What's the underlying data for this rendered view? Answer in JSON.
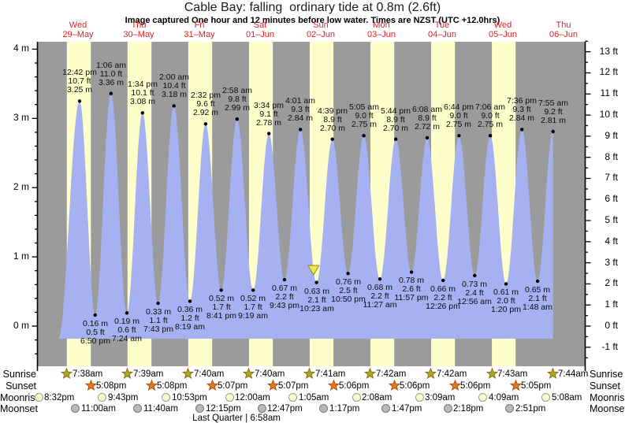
{
  "title": "Cable Bay: falling  ordinary tide at 0.8m (2.6ft)",
  "subtitle": "Image captured One hour and 12 minutes before low water. Times are NZST (UTC +12.0hrs)",
  "chart_data": {
    "type": "area",
    "title": "Cable Bay: falling  ordinary tide at 0.8m (2.6ft)",
    "ylabel_left_unit": "m",
    "ylabel_right_unit": "ft",
    "ylim_left_m": [
      -0.6,
      4.1
    ],
    "y_ticks_left_m": [
      0,
      1,
      2,
      3,
      4
    ],
    "y_ticks_right_ft": [
      -1,
      0,
      1,
      2,
      3,
      4,
      5,
      6,
      7,
      8,
      9,
      10,
      11,
      12,
      13
    ],
    "grid": false,
    "days": [
      {
        "dow": "Wed",
        "date": "29–May"
      },
      {
        "dow": "Thu",
        "date": "30–May"
      },
      {
        "dow": "Fri",
        "date": "31–May"
      },
      {
        "dow": "Sat",
        "date": "01–Jun"
      },
      {
        "dow": "Sun",
        "date": "02–Jun"
      },
      {
        "dow": "Mon",
        "date": "03–Jun"
      },
      {
        "dow": "Tue",
        "date": "04–Jun"
      },
      {
        "dow": "Wed",
        "date": "05–Jun"
      },
      {
        "dow": "Thu",
        "date": "06–Jun"
      }
    ],
    "tides": [
      {
        "kind": "high",
        "day": 0,
        "time": "12:42 pm",
        "ft": 10.7,
        "m": 3.25
      },
      {
        "kind": "low",
        "day": 0,
        "time": "6:50 pm",
        "ft": 0.5,
        "m": 0.16
      },
      {
        "kind": "high",
        "day": 1,
        "time": "1:06 am",
        "ft": 11.0,
        "m": 3.36
      },
      {
        "kind": "low",
        "day": 1,
        "time": "7:24 am",
        "ft": 0.6,
        "m": 0.19
      },
      {
        "kind": "high",
        "day": 1,
        "time": "1:34 pm",
        "ft": 10.1,
        "m": 3.08
      },
      {
        "kind": "low",
        "day": 1,
        "time": "7:43 pm",
        "ft": 1.1,
        "m": 0.33
      },
      {
        "kind": "high",
        "day": 2,
        "time": "2:00 am",
        "ft": 10.4,
        "m": 3.18
      },
      {
        "kind": "low",
        "day": 2,
        "time": "8:19 am",
        "ft": 1.2,
        "m": 0.36
      },
      {
        "kind": "high",
        "day": 2,
        "time": "2:32 pm",
        "ft": 9.6,
        "m": 2.92
      },
      {
        "kind": "low",
        "day": 2,
        "time": "8:41 pm",
        "ft": 1.7,
        "m": 0.52
      },
      {
        "kind": "high",
        "day": 3,
        "time": "2:58 am",
        "ft": 9.8,
        "m": 2.99
      },
      {
        "kind": "low",
        "day": 3,
        "time": "9:19 am",
        "ft": 1.7,
        "m": 0.52
      },
      {
        "kind": "high",
        "day": 3,
        "time": "3:34 pm",
        "ft": 9.1,
        "m": 2.78
      },
      {
        "kind": "low",
        "day": 3,
        "time": "9:43 pm",
        "ft": 2.2,
        "m": 0.67
      },
      {
        "kind": "high",
        "day": 4,
        "time": "4:01 am",
        "ft": 9.3,
        "m": 2.84
      },
      {
        "kind": "low",
        "day": 4,
        "time": "10:23 am",
        "ft": 2.1,
        "m": 0.63
      },
      {
        "kind": "high",
        "day": 4,
        "time": "4:39 pm",
        "ft": 8.9,
        "m": 2.7
      },
      {
        "kind": "low",
        "day": 4,
        "time": "10:50 pm",
        "ft": 2.5,
        "m": 0.76
      },
      {
        "kind": "high",
        "day": 5,
        "time": "5:05 am",
        "ft": 9.0,
        "m": 2.75
      },
      {
        "kind": "low",
        "day": 5,
        "time": "11:27 am",
        "ft": 2.2,
        "m": 0.68
      },
      {
        "kind": "high",
        "day": 5,
        "time": "5:44 pm",
        "ft": 8.9,
        "m": 2.7
      },
      {
        "kind": "low",
        "day": 5,
        "time": "11:57 pm",
        "ft": 2.6,
        "m": 0.78
      },
      {
        "kind": "high",
        "day": 6,
        "time": "6:08 am",
        "ft": 8.9,
        "m": 2.72
      },
      {
        "kind": "low",
        "day": 6,
        "time": "12:26 pm",
        "ft": 2.2,
        "m": 0.66
      },
      {
        "kind": "high",
        "day": 6,
        "time": "6:44 pm",
        "ft": 9.0,
        "m": 2.75
      },
      {
        "kind": "low",
        "day": 7,
        "time": "12:56 am",
        "ft": 2.4,
        "m": 0.73
      },
      {
        "kind": "high",
        "day": 7,
        "time": "7:06 am",
        "ft": 9.0,
        "m": 2.75
      },
      {
        "kind": "low",
        "day": 7,
        "time": "1:20 pm",
        "ft": 2.0,
        "m": 0.61
      },
      {
        "kind": "high",
        "day": 7,
        "time": "7:36 pm",
        "ft": 9.3,
        "m": 2.84
      },
      {
        "kind": "low",
        "day": 8,
        "time": "1:48 am",
        "ft": 2.1,
        "m": 0.65
      },
      {
        "kind": "high",
        "day": 8,
        "time": "7:55 am",
        "ft": 9.2,
        "m": 2.81
      }
    ],
    "now_marker": {
      "shape": "triangle-down",
      "day": 4,
      "time": "9:11 am"
    },
    "astro": {
      "rows": [
        {
          "label": "Sunrise",
          "icon": "sunrise-star",
          "events": [
            {
              "day": 0,
              "time": "7:38am"
            },
            {
              "day": 1,
              "time": "7:39am"
            },
            {
              "day": 2,
              "time": "7:40am"
            },
            {
              "day": 3,
              "time": "7:40am"
            },
            {
              "day": 4,
              "time": "7:41am"
            },
            {
              "day": 5,
              "time": "7:42am"
            },
            {
              "day": 6,
              "time": "7:42am"
            },
            {
              "day": 7,
              "time": "7:43am"
            },
            {
              "day": 8,
              "time": "7:44am"
            }
          ]
        },
        {
          "label": "Sunset",
          "icon": "sunset-star",
          "events": [
            {
              "day": 0,
              "time": "5:08pm"
            },
            {
              "day": 1,
              "time": "5:08pm"
            },
            {
              "day": 2,
              "time": "5:07pm"
            },
            {
              "day": 3,
              "time": "5:07pm"
            },
            {
              "day": 4,
              "time": "5:06pm"
            },
            {
              "day": 5,
              "time": "5:06pm"
            },
            {
              "day": 6,
              "time": "5:06pm"
            },
            {
              "day": 7,
              "time": "5:05pm"
            }
          ]
        },
        {
          "label": "Moonrise",
          "icon": "moonrise-circle",
          "events": [
            {
              "day": -1,
              "time": "8:32pm"
            },
            {
              "day": 0,
              "time": "9:43pm"
            },
            {
              "day": 1,
              "time": "10:53pm"
            },
            {
              "day": 3,
              "time": "12:00am"
            },
            {
              "day": 4,
              "time": "1:05am"
            },
            {
              "day": 5,
              "time": "2:08am"
            },
            {
              "day": 6,
              "time": "3:09am"
            },
            {
              "day": 7,
              "time": "4:09am"
            },
            {
              "day": 8,
              "time": "5:08am"
            }
          ]
        },
        {
          "label": "Moonset",
          "icon": "moonset-circle",
          "events": [
            {
              "day": 0,
              "time": "11:00am"
            },
            {
              "day": 1,
              "time": "11:40am"
            },
            {
              "day": 2,
              "time": "12:15pm"
            },
            {
              "day": 3,
              "time": "12:47pm"
            },
            {
              "day": 4,
              "time": "1:17pm"
            },
            {
              "day": 5,
              "time": "1:47pm"
            },
            {
              "day": 6,
              "time": "2:18pm"
            },
            {
              "day": 7,
              "time": "2:51pm"
            }
          ]
        }
      ],
      "footer": "Last Quarter | 6:58am"
    },
    "colors": {
      "night_band": "#9b9b9b",
      "day_band": "#ffffcc",
      "water_fill": "#a6b1f2",
      "date_text": "#dd2222",
      "sunrise_star": "#b3a422",
      "sunrise_star_edge": "#7d7010",
      "sunset_star": "#e07a1f",
      "sunset_star_edge": "#b34708",
      "moonrise_fill": "#ffffcc",
      "moonrise_edge": "#999999",
      "moonset_fill": "#b9b9b9",
      "moonset_edge": "#777777",
      "marker_fill": "#ece94f",
      "marker_edge": "#8a8a20",
      "axis_line": "#000000"
    }
  }
}
